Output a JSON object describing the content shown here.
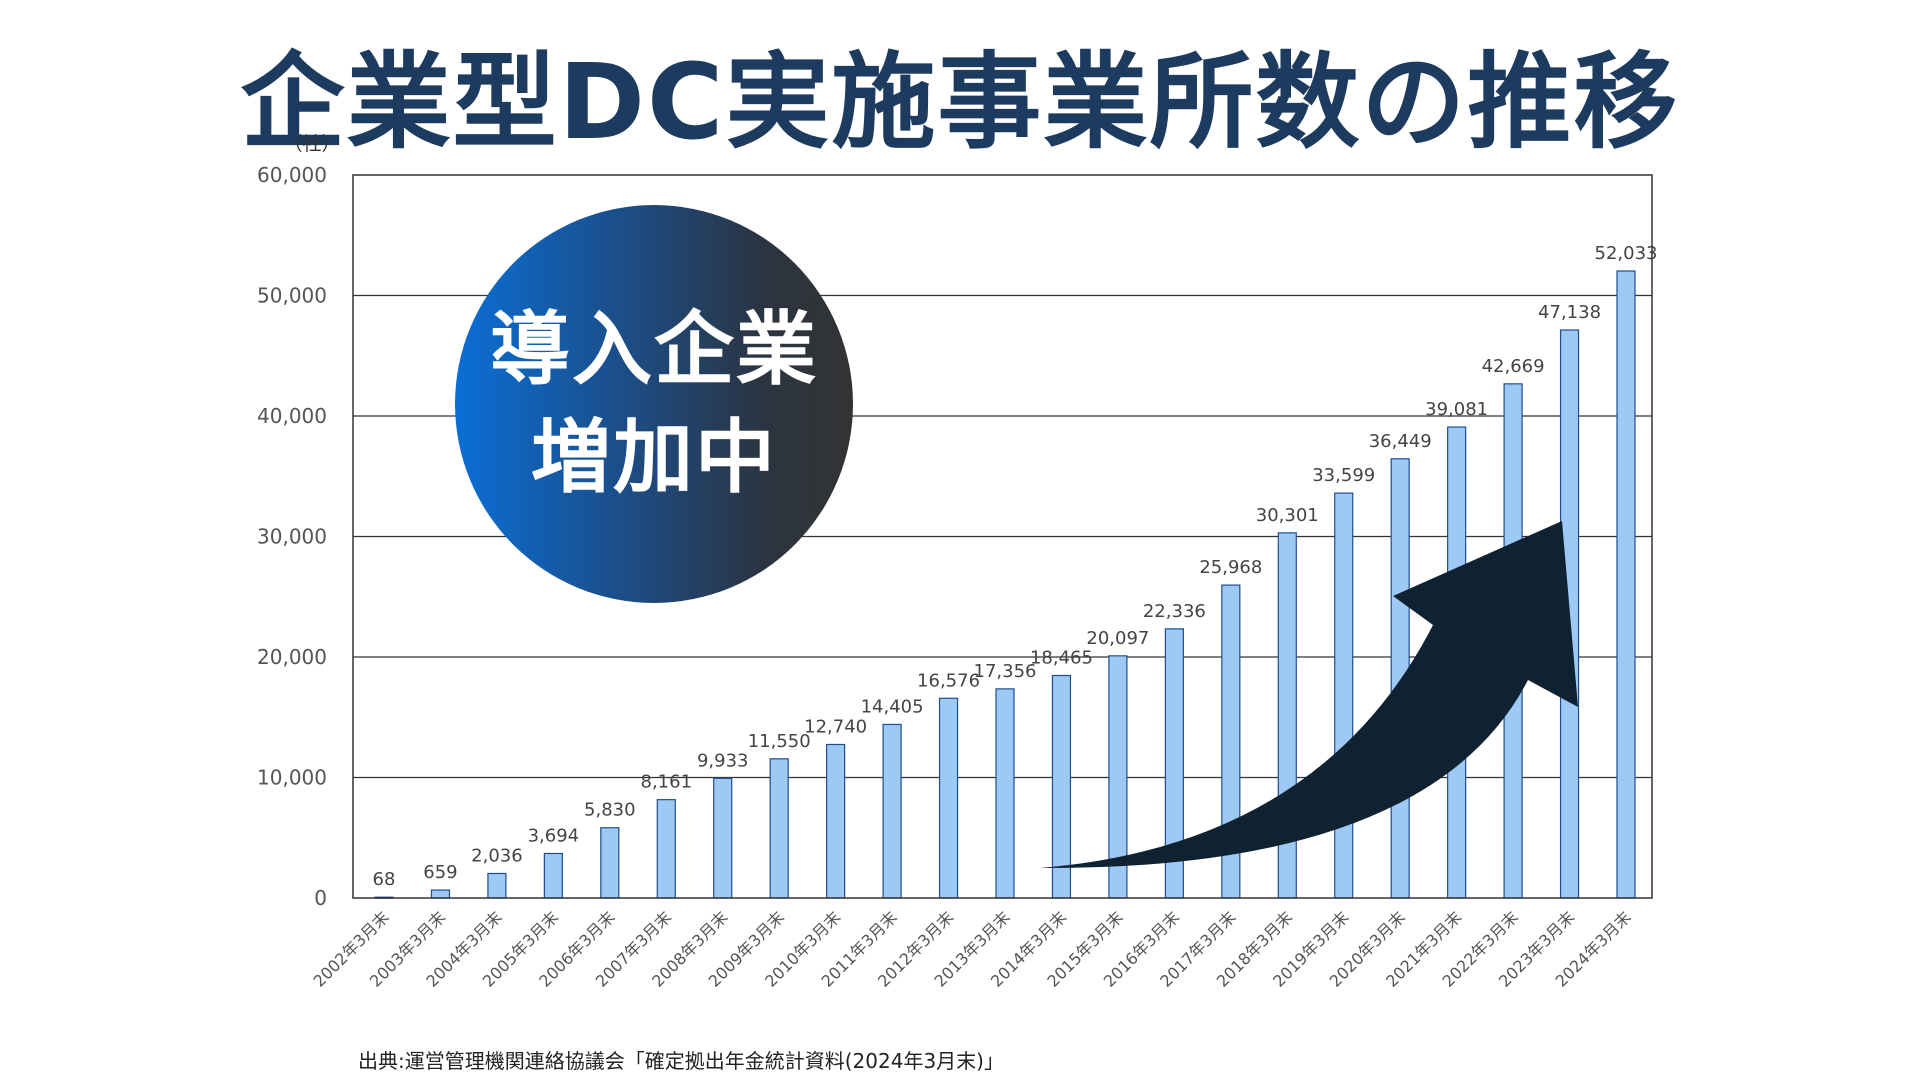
{
  "title": "企業型DC実施事業所数の推移",
  "badge": {
    "line1": "導入企業",
    "line2": "増加中"
  },
  "source": "出典:運営管理機関連絡協議会「確定拠出年金統計資料(2024年3月末)」",
  "colors": {
    "bar_fill": "#9ec9f5",
    "bar_stroke": "#1f4e8c",
    "arrow": "#0f2232",
    "title": "#1d3a5f"
  },
  "chart_data": {
    "type": "bar",
    "unit_label": "（社）",
    "ylim": [
      0,
      60000
    ],
    "yticks": [
      0,
      10000,
      20000,
      30000,
      40000,
      50000,
      60000
    ],
    "ytick_labels": [
      "0",
      "10,000",
      "20,000",
      "30,000",
      "40,000",
      "50,000",
      "60,000"
    ],
    "grid": true,
    "categories": [
      "2002年3月末",
      "2003年3月末",
      "2004年3月末",
      "2005年3月末",
      "2006年3月末",
      "2007年3月末",
      "2008年3月末",
      "2009年3月末",
      "2010年3月末",
      "2011年3月末",
      "2012年3月末",
      "2013年3月末",
      "2014年3月末",
      "2015年3月末",
      "2016年3月末",
      "2017年3月末",
      "2018年3月末",
      "2019年3月末",
      "2020年3月末",
      "2021年3月末",
      "2022年3月末",
      "2023年3月末",
      "2024年3月末"
    ],
    "values": [
      68,
      659,
      2036,
      3694,
      5830,
      8161,
      9933,
      11550,
      12740,
      14405,
      16576,
      17356,
      18465,
      20097,
      22336,
      25968,
      30301,
      33599,
      36449,
      39081,
      42669,
      47138,
      52033
    ],
    "value_labels": [
      "68",
      "659",
      "2,036",
      "3,694",
      "5,830",
      "8,161",
      "9,933",
      "11,550",
      "12,740",
      "14,405",
      "16,576",
      "17,356",
      "18,465",
      "20,097",
      "22,336",
      "25,968",
      "30,301",
      "33,599",
      "36,449",
      "39,081",
      "42,669",
      "47,138",
      "52,033"
    ]
  }
}
